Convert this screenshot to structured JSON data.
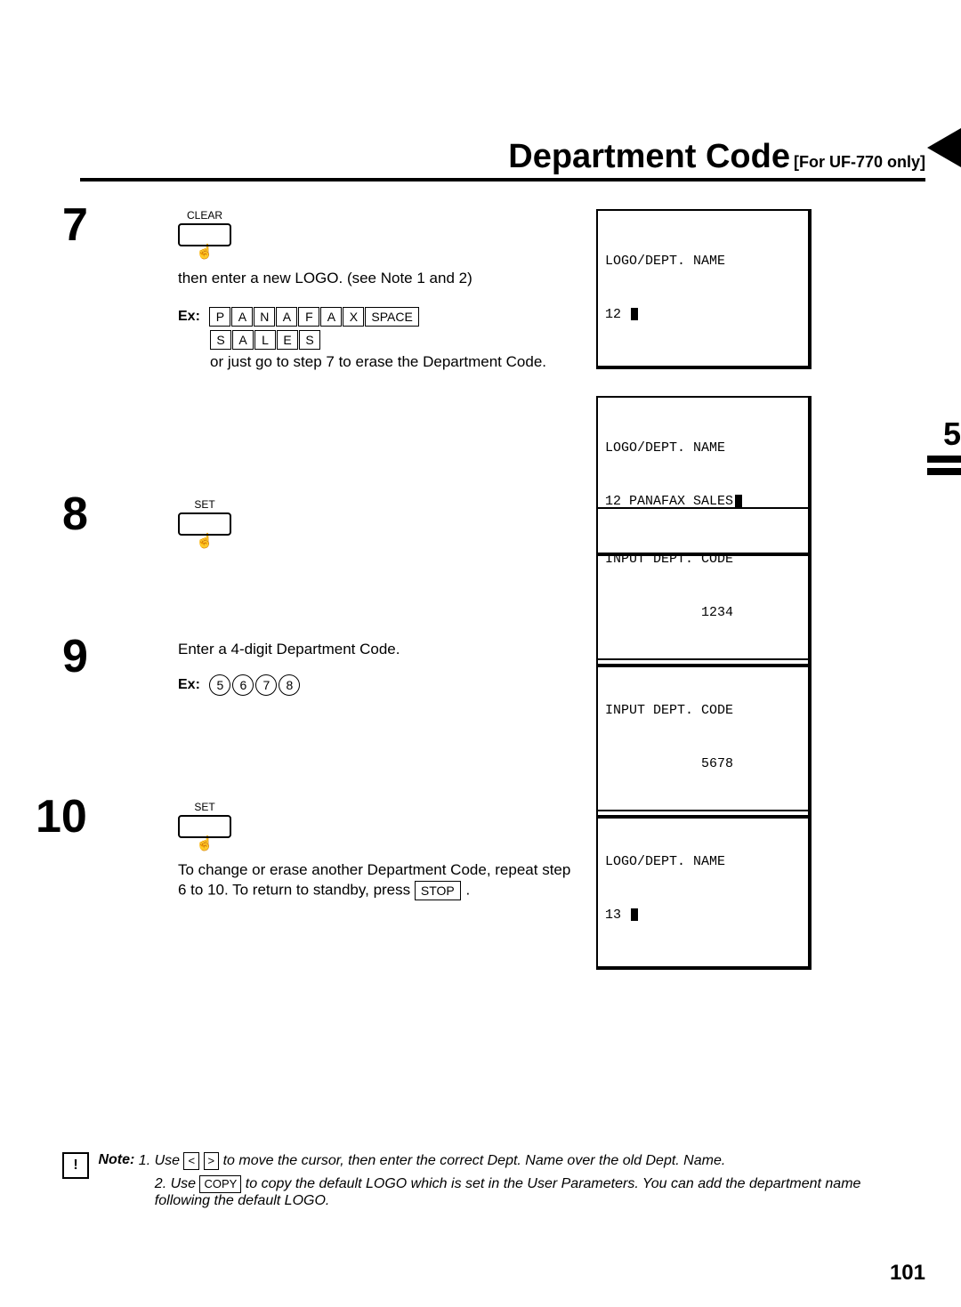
{
  "title": {
    "main": "Department Code",
    "sub": "[For UF-770 only]"
  },
  "side_tab": "5",
  "steps": {
    "s7": {
      "num": "7",
      "button": "CLEAR",
      "line1": "then enter a new LOGO.  (see Note 1 and 2)",
      "ex_label": "Ex:",
      "keys1": [
        "P",
        "A",
        "N",
        "A",
        "F",
        "A",
        "X",
        "SPACE"
      ],
      "keys2": [
        "S",
        "A",
        "L",
        "E",
        "S"
      ],
      "line2": "or just go to step 7 to erase the Department Code.",
      "lcd1": {
        "l1": "LOGO/DEPT. NAME",
        "l2": "12 "
      },
      "lcd2": {
        "l1": "LOGO/DEPT. NAME",
        "l2": "12 PANAFAX SALES"
      }
    },
    "s8": {
      "num": "8",
      "button": "SET",
      "lcd": {
        "l1": "INPUT DEPT. CODE",
        "l2": "            1234"
      }
    },
    "s9": {
      "num": "9",
      "line1": "Enter a 4-digit Department Code.",
      "ex_label": "Ex:",
      "keys": [
        "5",
        "6",
        "7",
        "8"
      ],
      "lcd": {
        "l1": "INPUT DEPT. CODE",
        "l2": "            5678"
      }
    },
    "s10": {
      "num": "10",
      "button": "SET",
      "line1": "To change or erase another Department Code, repeat step",
      "line2_a": "6 to 10.  To return to standby, press ",
      "stop_key": "STOP",
      "line2_b": " .",
      "lcd": {
        "l1": "LOGO/DEPT. NAME",
        "l2": "13 "
      }
    }
  },
  "note": {
    "label": "Note:",
    "n1a": "1. Use ",
    "k_lt": "<",
    "k_gt": ">",
    "n1b": " to move the cursor, then enter the correct Dept. Name over the old Dept. Name.",
    "n2a": "2. Use ",
    "k_copy": "COPY",
    "n2b": " to copy the default LOGO which is set in the User Parameters.  You can add the department name following the default LOGO."
  },
  "page_number": "101"
}
